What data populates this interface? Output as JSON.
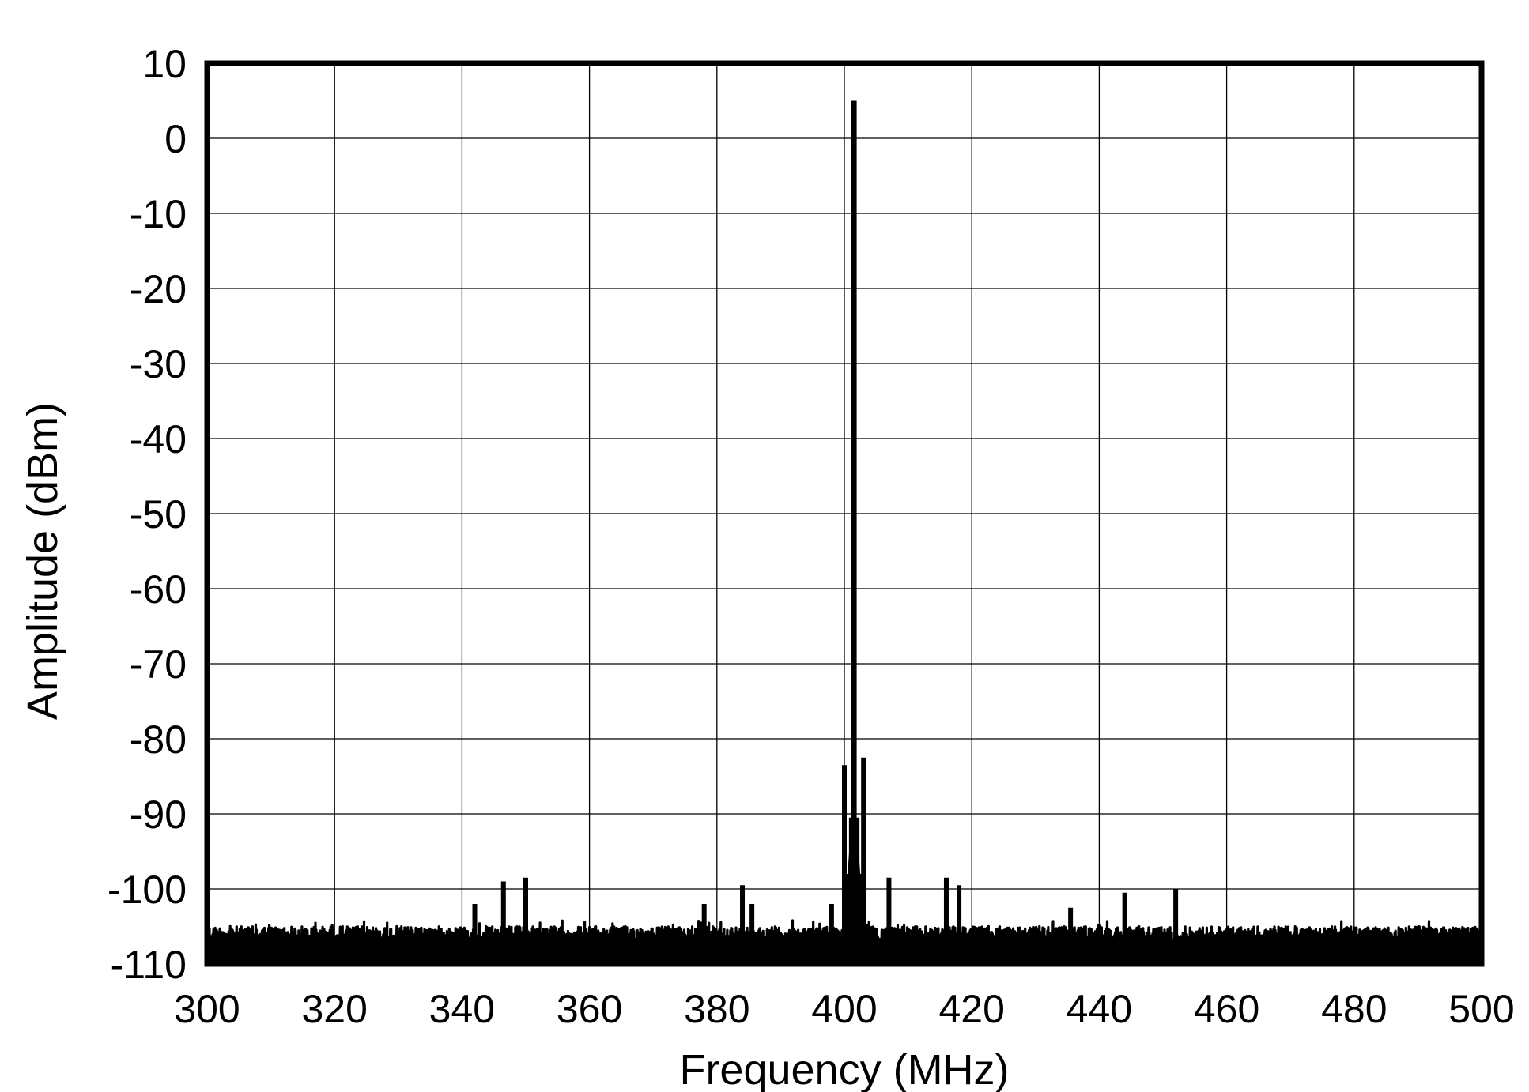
{
  "chart_data": {
    "type": "line",
    "title": "",
    "xlabel": "Frequency (MHz)",
    "ylabel": "Amplitude (dBm)",
    "xlim": [
      300,
      500
    ],
    "ylim": [
      -110,
      10
    ],
    "xticks": [
      300,
      320,
      340,
      360,
      380,
      400,
      420,
      440,
      460,
      480,
      500
    ],
    "yticks": [
      10,
      0,
      -10,
      -20,
      -30,
      -40,
      -50,
      -60,
      -70,
      -80,
      -90,
      -100,
      -110
    ],
    "grid": true,
    "legend": "none",
    "series": [
      {
        "color": "#000000",
        "noise_floor_dBm": [
          -110,
          -105
        ],
        "spurs": [
          {
            "x": 342.0,
            "y": -102
          },
          {
            "x": 346.5,
            "y": -99
          },
          {
            "x": 350.0,
            "y": -98.5
          },
          {
            "x": 378.0,
            "y": -102
          },
          {
            "x": 384.0,
            "y": -99.5
          },
          {
            "x": 385.5,
            "y": -102
          },
          {
            "x": 398.0,
            "y": -102
          },
          {
            "x": 400.0,
            "y": -83.5
          },
          {
            "x": 400.6,
            "y": -98
          },
          {
            "x": 401.1,
            "y": -90.5
          },
          {
            "x": 401.5,
            "y": 5
          },
          {
            "x": 402.0,
            "y": -90.5
          },
          {
            "x": 402.6,
            "y": -98
          },
          {
            "x": 403.0,
            "y": -82.5
          },
          {
            "x": 407.0,
            "y": -98.5
          },
          {
            "x": 416.0,
            "y": -98.5
          },
          {
            "x": 418.0,
            "y": -99.5
          },
          {
            "x": 435.5,
            "y": -102.5
          },
          {
            "x": 444.0,
            "y": -100.5
          },
          {
            "x": 452.0,
            "y": -100
          }
        ]
      }
    ]
  }
}
